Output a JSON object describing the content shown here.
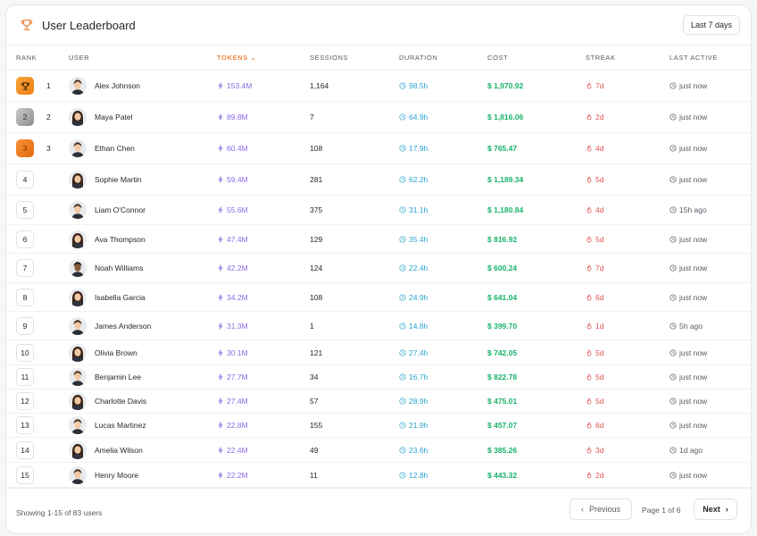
{
  "header": {
    "title": "User Leaderboard",
    "period_button": "Last 7 days"
  },
  "columns": {
    "rank": "RANK",
    "user": "USER",
    "tokens": "TOKENS",
    "sessions": "SESSIONS",
    "duration": "DURATION",
    "cost": "COST",
    "streak": "STREAK",
    "last_active": "LAST ACTIVE"
  },
  "sorted_column": "tokens",
  "colors": {
    "tokens": "#8a6ae6",
    "duration": "#2aa3cf",
    "cost": "#16b26a",
    "streak": "#e25252",
    "accent": "#f0883e"
  },
  "rows": [
    {
      "rank": "1",
      "badge": "gold",
      "name": "Alex Johnson",
      "avatar": "man-short-hair",
      "tokens": "153.4M",
      "sessions": "1,164",
      "duration": "98.5h",
      "cost": "$ 1,970.92",
      "streak": "7d",
      "last_active": "just now"
    },
    {
      "rank": "2",
      "badge": "silver",
      "badge_label": "2",
      "name": "Maya Patel",
      "avatar": "woman-long-hair",
      "tokens": "89.8M",
      "sessions": "7",
      "duration": "64.9h",
      "cost": "$ 1,816.06",
      "streak": "2d",
      "last_active": "just now"
    },
    {
      "rank": "3",
      "badge": "bronze",
      "badge_label": "3",
      "name": "Ethan Chen",
      "avatar": "man-short-hair",
      "tokens": "60.4M",
      "sessions": "108",
      "duration": "17.9h",
      "cost": "$ 765.47",
      "streak": "4d",
      "last_active": "just now"
    },
    {
      "rank": "4",
      "badge": "plain",
      "badge_label": "4",
      "name": "Sophie Martin",
      "avatar": "woman-long-hair",
      "tokens": "59.4M",
      "sessions": "281",
      "duration": "62.2h",
      "cost": "$ 1,189.34",
      "streak": "5d",
      "last_active": "just now"
    },
    {
      "rank": "5",
      "badge": "plain",
      "badge_label": "5",
      "name": "Liam O'Connor",
      "avatar": "man-short-hair",
      "tokens": "55.6M",
      "sessions": "375",
      "duration": "31.1h",
      "cost": "$ 1,180.84",
      "streak": "4d",
      "last_active": "15h ago"
    },
    {
      "rank": "6",
      "badge": "plain",
      "badge_label": "6",
      "name": "Ava Thompson",
      "avatar": "woman-long-hair",
      "tokens": "47.4M",
      "sessions": "129",
      "duration": "35.4h",
      "cost": "$ 816.92",
      "streak": "5d",
      "last_active": "just now"
    },
    {
      "rank": "7",
      "badge": "plain",
      "badge_label": "7",
      "name": "Noah Williams",
      "avatar": "man-dark-skin",
      "tokens": "42.2M",
      "sessions": "124",
      "duration": "22.4h",
      "cost": "$ 600.24",
      "streak": "7d",
      "last_active": "just now"
    },
    {
      "rank": "8",
      "badge": "plain",
      "badge_label": "8",
      "name": "Isabella Garcia",
      "avatar": "woman-long-hair",
      "tokens": "34.2M",
      "sessions": "108",
      "duration": "24.9h",
      "cost": "$ 641.04",
      "streak": "6d",
      "last_active": "just now"
    },
    {
      "rank": "9",
      "badge": "plain",
      "badge_label": "9",
      "name": "James Anderson",
      "avatar": "man-short-hair",
      "tokens": "31.3M",
      "sessions": "1",
      "duration": "14.8h",
      "cost": "$ 399.70",
      "streak": "1d",
      "last_active": "5h ago"
    },
    {
      "rank": "10",
      "badge": "plain",
      "badge_label": "10",
      "name": "Olivia Brown",
      "avatar": "woman-long-hair",
      "tokens": "30.1M",
      "sessions": "121",
      "duration": "27.4h",
      "cost": "$ 742.05",
      "streak": "5d",
      "last_active": "just now"
    },
    {
      "rank": "11",
      "badge": "plain",
      "badge_label": "11",
      "name": "Benjamin Lee",
      "avatar": "man-short-hair",
      "tokens": "27.7M",
      "sessions": "34",
      "duration": "16.7h",
      "cost": "$ 822.78",
      "streak": "5d",
      "last_active": "just now"
    },
    {
      "rank": "12",
      "badge": "plain",
      "badge_label": "12",
      "name": "Charlotte Davis",
      "avatar": "woman-long-hair",
      "tokens": "27.4M",
      "sessions": "57",
      "duration": "28.9h",
      "cost": "$ 475.01",
      "streak": "5d",
      "last_active": "just now"
    },
    {
      "rank": "13",
      "badge": "plain",
      "badge_label": "13",
      "name": "Lucas Martinez",
      "avatar": "man-short-hair",
      "tokens": "22.8M",
      "sessions": "155",
      "duration": "21.9h",
      "cost": "$ 457.07",
      "streak": "6d",
      "last_active": "just now"
    },
    {
      "rank": "14",
      "badge": "plain",
      "badge_label": "14",
      "name": "Amelia Wilson",
      "avatar": "woman-long-hair",
      "tokens": "22.4M",
      "sessions": "49",
      "duration": "23.6h",
      "cost": "$ 385.26",
      "streak": "3d",
      "last_active": "1d ago"
    },
    {
      "rank": "15",
      "badge": "plain",
      "badge_label": "15",
      "name": "Henry Moore",
      "avatar": "man-short-hair",
      "tokens": "22.2M",
      "sessions": "11",
      "duration": "12.8h",
      "cost": "$ 443.32",
      "streak": "2d",
      "last_active": "just now"
    }
  ],
  "footer": {
    "showing": "Showing 1-15 of 83 users",
    "previous": "Previous",
    "page_info": "Page 1 of 6",
    "next": "Next"
  }
}
